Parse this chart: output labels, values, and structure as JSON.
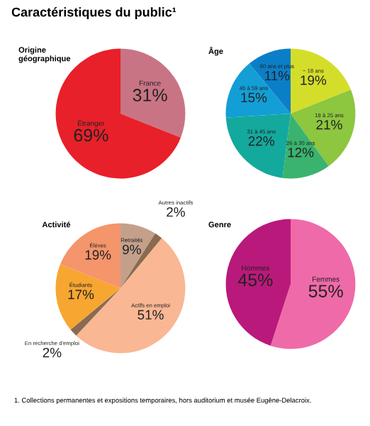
{
  "chart_data": [
    {
      "type": "pie",
      "title": "Origine géographique",
      "categories": [
        "France",
        "Étranger"
      ],
      "values": [
        31,
        69
      ],
      "value_labels": [
        "31%",
        "69%"
      ],
      "colors": [
        "#c97485",
        "#e8202a"
      ],
      "annotations": [
        "Caractéristiques du public¹"
      ]
    },
    {
      "type": "pie",
      "title": "Âge",
      "categories": [
        "− 18 ans",
        "18 à 25 ans",
        "26 à 30 ans",
        "31 à 45 ans",
        "46 à 59 ans",
        "60 ans et plus"
      ],
      "values": [
        19,
        21,
        12,
        22,
        15,
        11
      ],
      "value_labels": [
        "19%",
        "21%",
        "12%",
        "22%",
        "15%",
        "11%"
      ],
      "colors": [
        "#d4de2a",
        "#8dc63f",
        "#3ab36e",
        "#13a99d",
        "#139ed6",
        "#0a7fc8"
      ]
    },
    {
      "type": "pie",
      "title": "Activité",
      "categories": [
        "Retraités",
        "Autres inactifs",
        "Actifs en emploi",
        "En recherche d'emploi",
        "Étudiants",
        "Élèves"
      ],
      "values": [
        9,
        2,
        51,
        2,
        17,
        19
      ],
      "value_labels": [
        "9%",
        "2%",
        "51%",
        "2%",
        "17%",
        "19%"
      ],
      "colors": [
        "#c4a08a",
        "#8a6a50",
        "#f9b794",
        "#8a6a50",
        "#f7a631",
        "#f4956b"
      ],
      "annotations": [
        "1. Collections permanentes et expositions temporaires, hors auditorium et musée Eugène-Delacroix."
      ]
    },
    {
      "type": "pie",
      "title": "Genre",
      "categories": [
        "Femmes",
        "Hommes"
      ],
      "values": [
        55,
        45
      ],
      "value_labels": [
        "55%",
        "45%"
      ],
      "colors": [
        "#ef6aa8",
        "#b9197b"
      ]
    }
  ]
}
